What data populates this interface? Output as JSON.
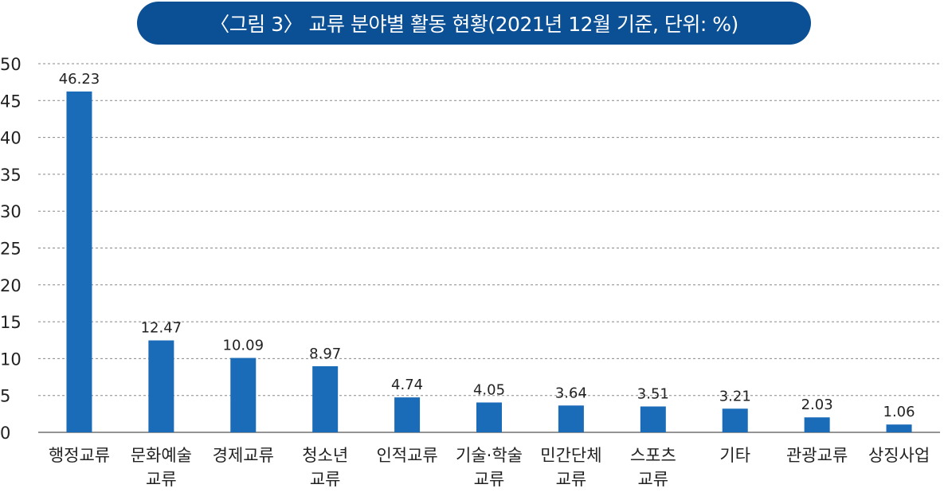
{
  "title": "〈그림 3〉 교류 분야별 활동 현황(2021년 12월 기준, 단위: %)",
  "colors": {
    "bar": "#1a6bb8",
    "title_bg": "#0b4f95",
    "grid": "#888888",
    "axis": "#555555"
  },
  "chart_data": {
    "type": "bar",
    "categories": [
      [
        "행정교류"
      ],
      [
        "문화예술",
        "교류"
      ],
      [
        "경제교류"
      ],
      [
        "청소년",
        "교류"
      ],
      [
        "인적교류"
      ],
      [
        "기술·학술",
        "교류"
      ],
      [
        "민간단체",
        "교류"
      ],
      [
        "스포츠",
        "교류"
      ],
      [
        "기타"
      ],
      [
        "관광교류"
      ],
      [
        "상징사업"
      ]
    ],
    "values": [
      46.23,
      12.47,
      10.09,
      8.97,
      4.74,
      4.05,
      3.64,
      3.51,
      3.21,
      2.03,
      1.06
    ],
    "value_labels": [
      "46.23",
      "12.47",
      "10.09",
      "8.97",
      "4.74",
      "4.05",
      "3.64",
      "3.51",
      "3.21",
      "2.03",
      "1.06"
    ],
    "yticks": [
      "0",
      "5",
      "10",
      "15",
      "20",
      "25",
      "30",
      "35",
      "40",
      "45",
      "50"
    ],
    "ylim": [
      0,
      50
    ],
    "grid": true,
    "xlabel": "",
    "ylabel": ""
  }
}
